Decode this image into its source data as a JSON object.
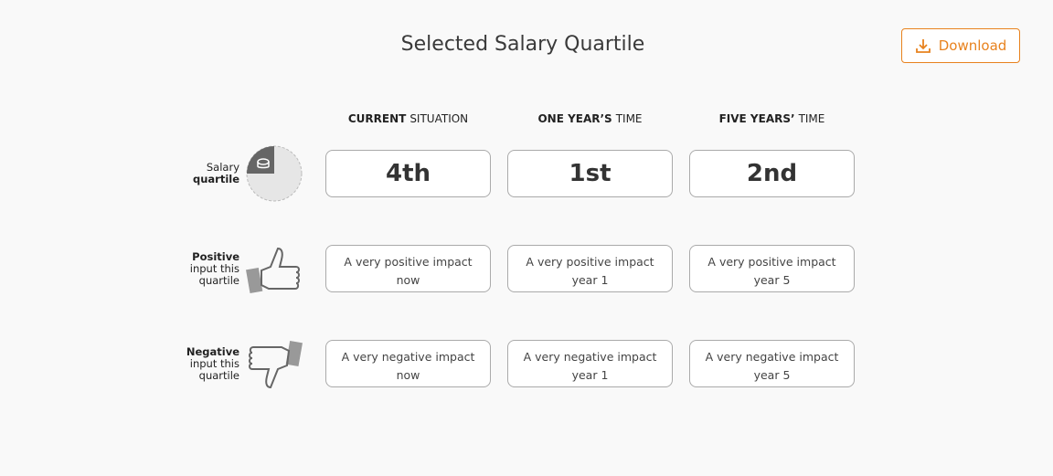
{
  "header": {
    "title": "Selected Salary Quartile",
    "download": "Download"
  },
  "columns": [
    {
      "bold": "CURRENT",
      "rest": "SITUATION"
    },
    {
      "bold": "ONE YEAR’S",
      "rest": "TIME"
    },
    {
      "bold": "FIVE YEARS’",
      "rest": "TIME"
    }
  ],
  "rows": [
    {
      "label": [
        {
          "text": "Salary",
          "bold": false
        },
        {
          "text": "quartile",
          "bold": true
        }
      ],
      "cells": [
        "4th",
        "1st",
        "2nd"
      ],
      "large": true
    },
    {
      "label": [
        {
          "text": "Positive",
          "bold": true
        },
        {
          "text": "input this",
          "bold": false
        },
        {
          "text": "quartile",
          "bold": false
        }
      ],
      "cells": [
        "A very positive impact now",
        "A very positive impact year 1",
        "A very positive impact year 5"
      ],
      "large": false
    },
    {
      "label": [
        {
          "text": "Negative",
          "bold": true
        },
        {
          "text": "input this",
          "bold": false
        },
        {
          "text": "quartile",
          "bold": false
        }
      ],
      "cells": [
        "A very negative impact now",
        "A very negative impact year 1",
        "A very negative impact year 5"
      ],
      "large": false
    }
  ]
}
